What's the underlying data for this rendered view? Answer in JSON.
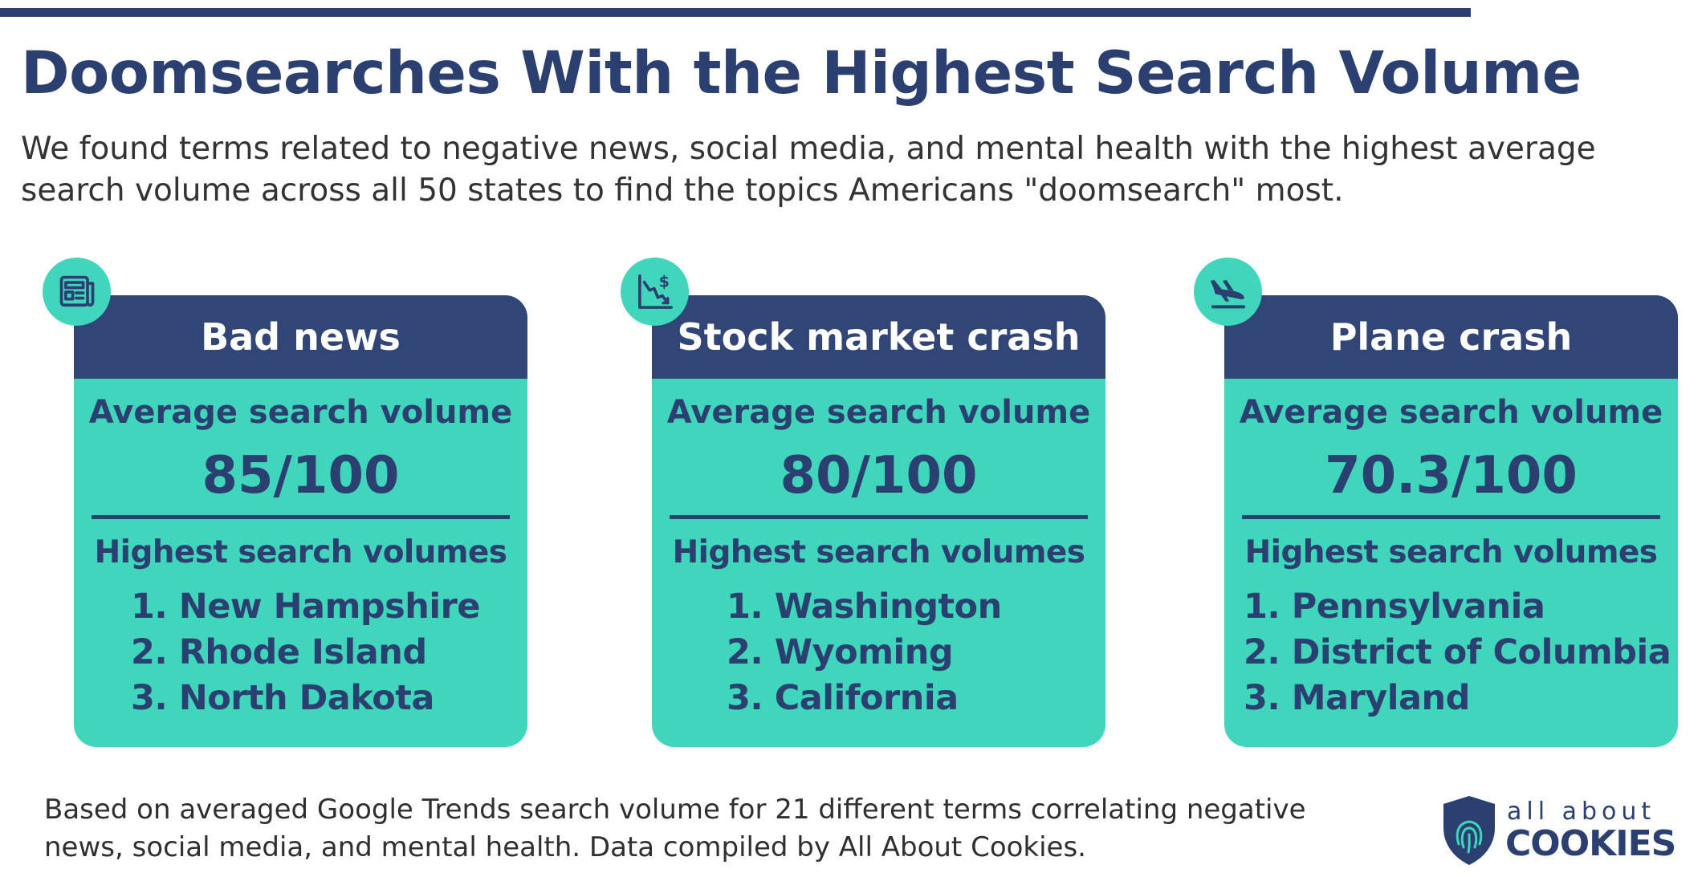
{
  "header": {
    "title": "Doomsearches With the Highest Search Volume",
    "subtitle": "We found terms related to negative news, social media, and mental health with the highest average search volume across all 50 states to find the topics Americans \"doomsearch\" most."
  },
  "cards": [
    {
      "title": "Bad news",
      "icon": "newspaper-icon",
      "label": "Average search volume",
      "value": "85/100",
      "sub_label": "Highest search volumes",
      "states": [
        "1. New Hampshire",
        "2. Rhode Island",
        "3. North Dakota"
      ]
    },
    {
      "title": "Stock market crash",
      "icon": "stock-decline-dollar-icon",
      "label": "Average search volume",
      "value": "80/100",
      "sub_label": "Highest search volumes",
      "states": [
        "1. Washington",
        "2. Wyoming",
        "3. California"
      ]
    },
    {
      "title": "Plane crash",
      "icon": "plane-landing-icon",
      "label": "Average search volume",
      "value": "70.3/100",
      "sub_label": "Highest search volumes",
      "states": [
        "1. Pennsylvania",
        "2. District of Columbia",
        "3. Maryland"
      ]
    }
  ],
  "footer": {
    "note": "Based on averaged Google Trends search volume for 21 different terms correlating negative news, social media, and mental health. Data compiled by All About Cookies.",
    "logo_top": "all about",
    "logo_bottom": "COOKIES",
    "logo_icon": "shield-fingerprint-icon"
  },
  "colors": {
    "navy": "#2b3f70",
    "card_header": "#314576",
    "teal": "#40d6bc"
  }
}
